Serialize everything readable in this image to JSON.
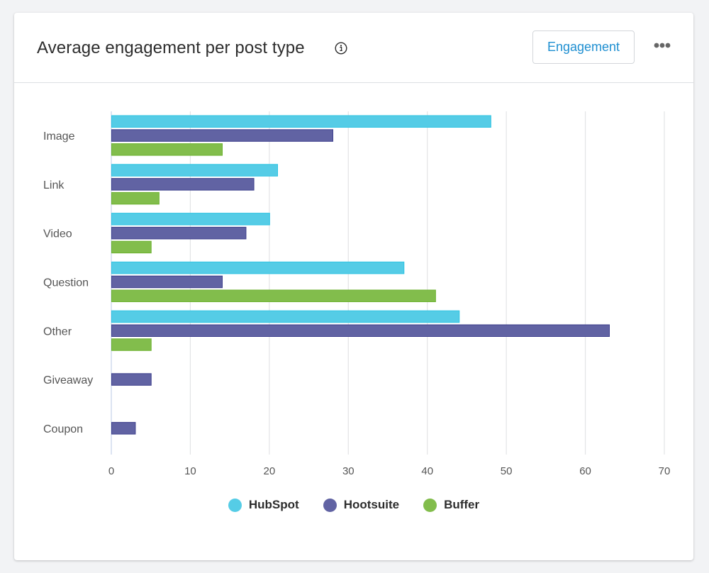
{
  "header": {
    "title": "Average engagement per post type",
    "info_icon": "info-circle-icon",
    "metric_button_label": "Engagement",
    "more_icon": "more-horizontal-icon"
  },
  "colors": {
    "HubSpot": "#55cce6",
    "Hootsuite": "#6163a3",
    "Buffer": "#82bd4c",
    "HubSpot_border": "#2ec3e2",
    "Hootsuite_border": "#3d3f8c",
    "Buffer_border": "#6cb22f",
    "grid": "#e3e4e6",
    "axis": "#b8c9e6",
    "accent": "#1f8fd1"
  },
  "chart_data": {
    "type": "bar",
    "orientation": "horizontal",
    "title": "Average engagement per post type",
    "xlabel": "",
    "ylabel": "",
    "categories": [
      "Image",
      "Link",
      "Video",
      "Question",
      "Other",
      "Giveaway",
      "Coupon"
    ],
    "series": [
      {
        "name": "HubSpot",
        "values": [
          48,
          21,
          20,
          37,
          44,
          0,
          0
        ]
      },
      {
        "name": "Hootsuite",
        "values": [
          28,
          18,
          17,
          14,
          63,
          5,
          3
        ]
      },
      {
        "name": "Buffer",
        "values": [
          14,
          6,
          5,
          41,
          5,
          0,
          0
        ]
      }
    ],
    "xlim": [
      0,
      70
    ],
    "xticks": [
      0,
      10,
      20,
      30,
      40,
      50,
      60,
      70
    ],
    "grid": true,
    "legend_position": "bottom-center"
  }
}
